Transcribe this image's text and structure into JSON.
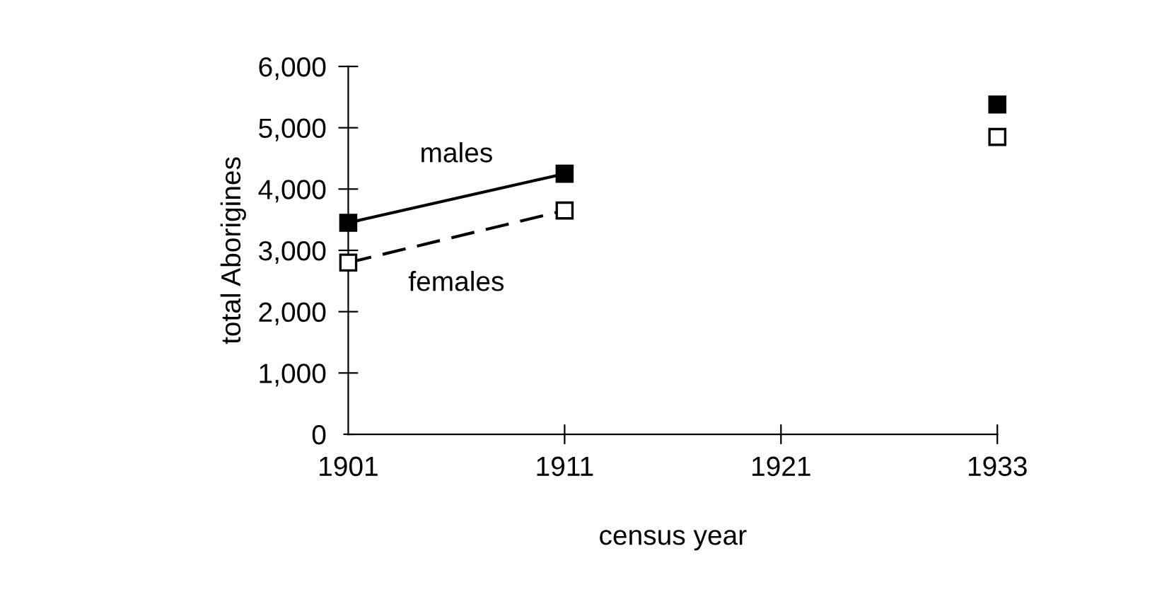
{
  "chart_data": {
    "type": "line",
    "xlabel": "census year",
    "ylabel": "total Aborigines",
    "categories": [
      "1901",
      "1911",
      "1921",
      "1933"
    ],
    "series": [
      {
        "name": "males",
        "color": "#000000",
        "values": [
          3450,
          4250,
          null,
          5380
        ],
        "marker": "square",
        "line_style": "solid"
      },
      {
        "name": "females",
        "color": "#ffffff",
        "values": [
          2800,
          3650,
          null,
          4850
        ],
        "marker": "square",
        "line_style": "dashed"
      }
    ],
    "ylim": [
      0,
      6000
    ],
    "yticks": [
      {
        "value": 0,
        "label": "0"
      },
      {
        "value": 1000,
        "label": "1,000"
      },
      {
        "value": 2000,
        "label": "2,000"
      },
      {
        "value": 3000,
        "label": "3,000"
      },
      {
        "value": 4000,
        "label": "4,000"
      },
      {
        "value": 5000,
        "label": "5,000"
      },
      {
        "value": 6000,
        "label": "6,000"
      }
    ],
    "grid": false,
    "legend": false
  }
}
